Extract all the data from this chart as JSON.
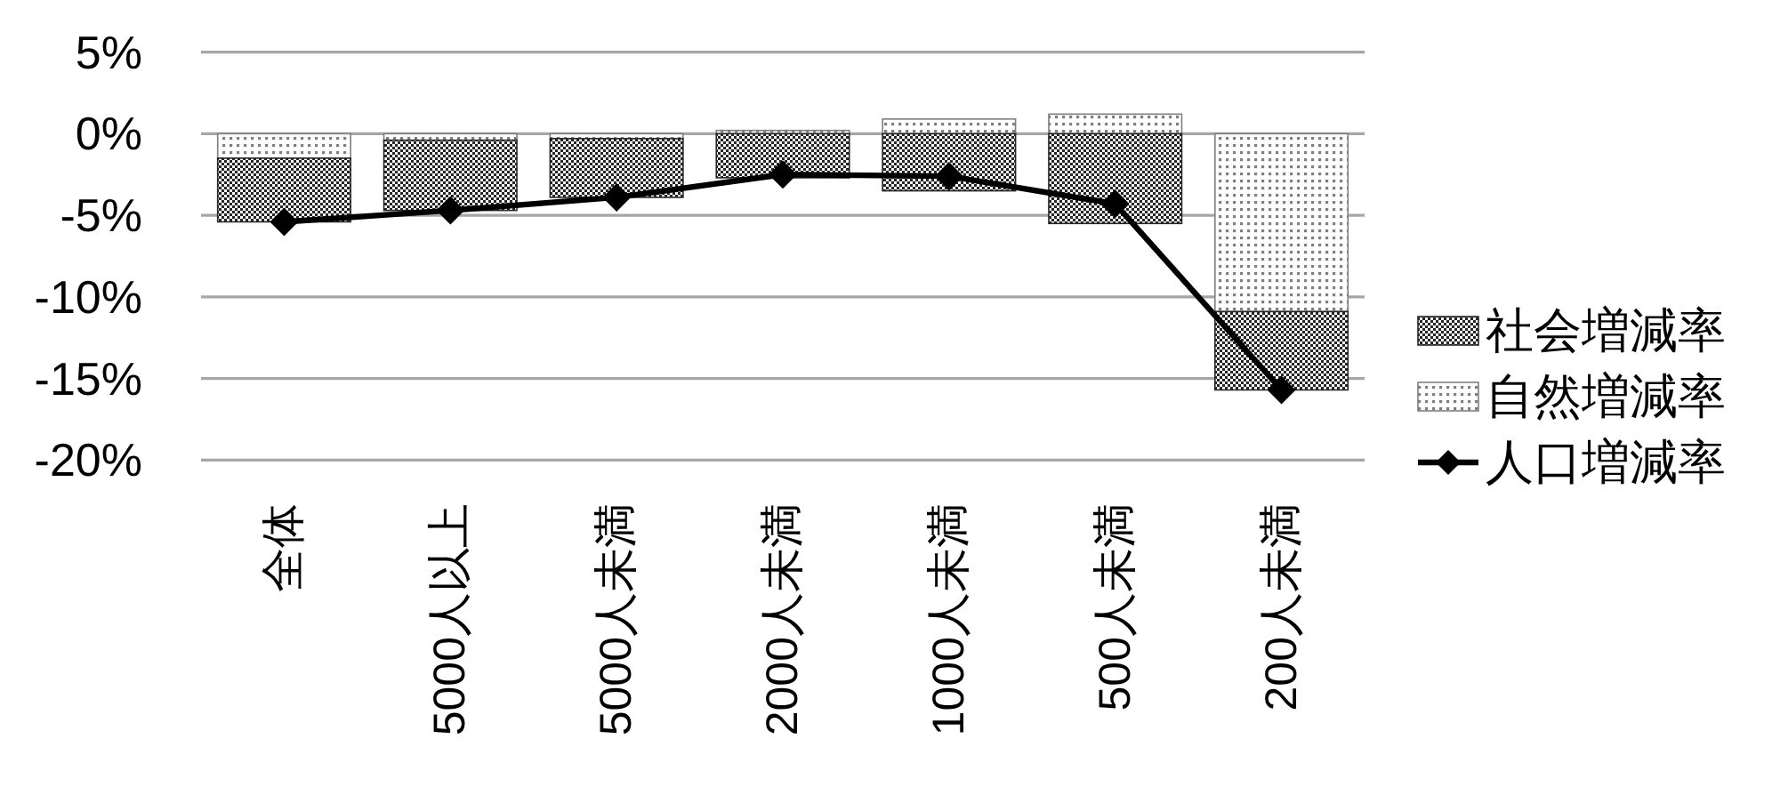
{
  "chart_data": {
    "type": "bar",
    "stacked": true,
    "categories": [
      "全体",
      "5000人以上",
      "5000人未満",
      "2000人未満",
      "1000人未満",
      "500人未満",
      "200人未満"
    ],
    "series": [
      {
        "name": "自然増減率",
        "color": "#7f7f7f",
        "values": [
          -1.5,
          -0.4,
          -0.3,
          0.2,
          0.9,
          1.2,
          -10.9
        ]
      },
      {
        "name": "社会増減率",
        "color": "#262626",
        "values": [
          -3.9,
          -4.3,
          -3.6,
          -2.7,
          -3.5,
          -5.5,
          -4.8
        ]
      },
      {
        "name": "人口増減率",
        "type": "line",
        "color": "#000000",
        "values": [
          -5.4,
          -4.7,
          -3.9,
          -2.5,
          -2.6,
          -4.3,
          -15.7
        ]
      }
    ],
    "ylim": [
      -20,
      5
    ],
    "yticks": [
      {
        "value": 5,
        "label": "5%"
      },
      {
        "value": 0,
        "label": "0%"
      },
      {
        "value": -5,
        "label": "-5%"
      },
      {
        "value": -10,
        "label": "-10%"
      },
      {
        "value": -15,
        "label": "-15%"
      },
      {
        "value": -20,
        "label": "-20%"
      }
    ],
    "grid": "y",
    "legend": "right",
    "marker": "diamond",
    "line_style": "solid"
  }
}
